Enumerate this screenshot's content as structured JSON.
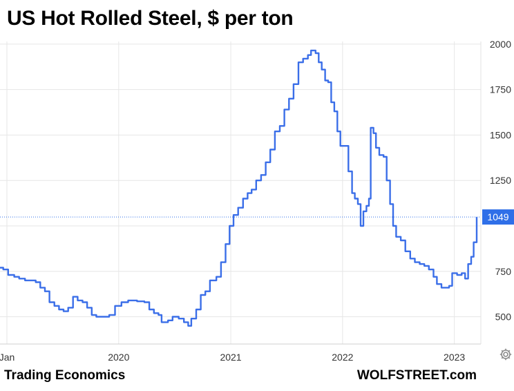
{
  "title": "US Hot Rolled Steel, $ per ton",
  "footer": {
    "source": "Trading Economics",
    "site": "WOLFSTREET.com"
  },
  "icons": {
    "settings": "gear-icon"
  },
  "colors": {
    "line": "#3a6ee8",
    "last_badge": "#2f6fe8",
    "grid": "#e6e6e6"
  },
  "chart_data": {
    "type": "line",
    "title": "US Hot Rolled Steel, $ per ton",
    "xlabel": "",
    "ylabel": "",
    "ylim": [
      350,
      2030
    ],
    "xlim": [
      "2019-01-01",
      "2023-03-15"
    ],
    "x_ticks": [
      {
        "date": "2019-01-01",
        "label": "Jan"
      },
      {
        "date": "2020-01-01",
        "label": "2020"
      },
      {
        "date": "2021-01-01",
        "label": "2021"
      },
      {
        "date": "2022-01-01",
        "label": "2022"
      },
      {
        "date": "2023-01-01",
        "label": "2023"
      }
    ],
    "y_ticks": [
      {
        "value": 500,
        "label": "500"
      },
      {
        "value": 750,
        "label": "750"
      },
      {
        "value": 1000,
        "label": ""
      },
      {
        "value": 1250,
        "label": "1250"
      },
      {
        "value": 1500,
        "label": "1500"
      },
      {
        "value": 1750,
        "label": "1750"
      },
      {
        "value": 2000,
        "label": "2000"
      }
    ],
    "last_value": 1049,
    "last_value_label": "1049",
    "grid": true,
    "series": [
      {
        "points": [
          [
            "2018-12-01",
            770
          ],
          [
            "2018-12-20",
            760
          ],
          [
            "2019-01-05",
            730
          ],
          [
            "2019-01-25",
            720
          ],
          [
            "2019-02-10",
            710
          ],
          [
            "2019-03-01",
            700
          ],
          [
            "2019-03-20",
            700
          ],
          [
            "2019-04-05",
            690
          ],
          [
            "2019-04-20",
            660
          ],
          [
            "2019-05-05",
            640
          ],
          [
            "2019-05-20",
            580
          ],
          [
            "2019-06-05",
            560
          ],
          [
            "2019-06-20",
            540
          ],
          [
            "2019-07-05",
            530
          ],
          [
            "2019-07-20",
            550
          ],
          [
            "2019-08-05",
            610
          ],
          [
            "2019-08-20",
            590
          ],
          [
            "2019-09-05",
            580
          ],
          [
            "2019-09-20",
            550
          ],
          [
            "2019-10-05",
            510
          ],
          [
            "2019-10-20",
            500
          ],
          [
            "2019-11-10",
            500
          ],
          [
            "2019-12-01",
            510
          ],
          [
            "2019-12-20",
            560
          ],
          [
            "2020-01-10",
            580
          ],
          [
            "2020-02-01",
            590
          ],
          [
            "2020-03-01",
            585
          ],
          [
            "2020-03-25",
            580
          ],
          [
            "2020-04-10",
            540
          ],
          [
            "2020-04-25",
            520
          ],
          [
            "2020-05-10",
            510
          ],
          [
            "2020-05-20",
            470
          ],
          [
            "2020-06-10",
            480
          ],
          [
            "2020-06-25",
            500
          ],
          [
            "2020-07-15",
            490
          ],
          [
            "2020-08-01",
            470
          ],
          [
            "2020-08-15",
            450
          ],
          [
            "2020-08-25",
            490
          ],
          [
            "2020-09-10",
            540
          ],
          [
            "2020-09-25",
            620
          ],
          [
            "2020-10-10",
            640
          ],
          [
            "2020-10-25",
            700
          ],
          [
            "2020-11-15",
            720
          ],
          [
            "2020-11-30",
            800
          ],
          [
            "2020-12-15",
            900
          ],
          [
            "2020-12-28",
            1000
          ],
          [
            "2021-01-10",
            1060
          ],
          [
            "2021-01-25",
            1100
          ],
          [
            "2021-02-10",
            1150
          ],
          [
            "2021-02-25",
            1180
          ],
          [
            "2021-03-10",
            1200
          ],
          [
            "2021-03-25",
            1250
          ],
          [
            "2021-04-10",
            1280
          ],
          [
            "2021-04-25",
            1350
          ],
          [
            "2021-05-10",
            1420
          ],
          [
            "2021-05-25",
            1520
          ],
          [
            "2021-06-10",
            1550
          ],
          [
            "2021-06-25",
            1640
          ],
          [
            "2021-07-10",
            1700
          ],
          [
            "2021-07-25",
            1780
          ],
          [
            "2021-08-10",
            1900
          ],
          [
            "2021-08-25",
            1920
          ],
          [
            "2021-09-10",
            1940
          ],
          [
            "2021-09-20",
            1965
          ],
          [
            "2021-10-05",
            1950
          ],
          [
            "2021-10-15",
            1900
          ],
          [
            "2021-10-25",
            1860
          ],
          [
            "2021-11-05",
            1800
          ],
          [
            "2021-11-15",
            1790
          ],
          [
            "2021-11-25",
            1680
          ],
          [
            "2021-12-05",
            1630
          ],
          [
            "2021-12-15",
            1520
          ],
          [
            "2021-12-25",
            1440
          ],
          [
            "2022-01-10",
            1440
          ],
          [
            "2022-01-20",
            1300
          ],
          [
            "2022-02-01",
            1180
          ],
          [
            "2022-02-10",
            1150
          ],
          [
            "2022-02-20",
            1120
          ],
          [
            "2022-03-01",
            1000
          ],
          [
            "2022-03-10",
            1080
          ],
          [
            "2022-03-20",
            1110
          ],
          [
            "2022-03-28",
            1150
          ],
          [
            "2022-04-03",
            1540
          ],
          [
            "2022-04-12",
            1510
          ],
          [
            "2022-04-20",
            1430
          ],
          [
            "2022-05-01",
            1390
          ],
          [
            "2022-05-15",
            1380
          ],
          [
            "2022-05-25",
            1250
          ],
          [
            "2022-06-05",
            1120
          ],
          [
            "2022-06-15",
            1000
          ],
          [
            "2022-06-25",
            940
          ],
          [
            "2022-07-10",
            920
          ],
          [
            "2022-07-25",
            860
          ],
          [
            "2022-08-10",
            820
          ],
          [
            "2022-08-25",
            800
          ],
          [
            "2022-09-10",
            790
          ],
          [
            "2022-09-25",
            780
          ],
          [
            "2022-10-10",
            760
          ],
          [
            "2022-10-25",
            720
          ],
          [
            "2022-11-05",
            680
          ],
          [
            "2022-11-20",
            660
          ],
          [
            "2022-12-05",
            660
          ],
          [
            "2022-12-15",
            670
          ],
          [
            "2022-12-25",
            740
          ],
          [
            "2023-01-10",
            730
          ],
          [
            "2023-01-25",
            740
          ],
          [
            "2023-02-05",
            710
          ],
          [
            "2023-02-15",
            790
          ],
          [
            "2023-02-25",
            830
          ],
          [
            "2023-03-05",
            910
          ],
          [
            "2023-03-15",
            1049
          ]
        ]
      }
    ]
  }
}
